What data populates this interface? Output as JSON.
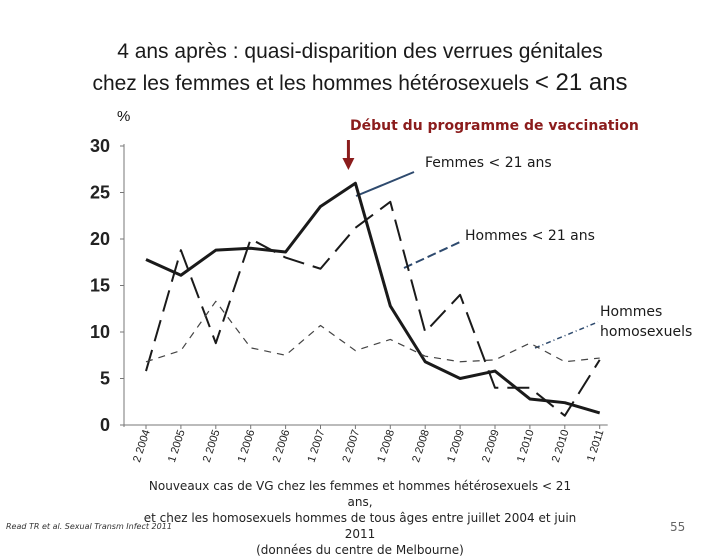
{
  "title": {
    "line1": "4 ans après : quasi-disparition des verrues génitales",
    "line2": "chez les femmes et les hommes hétérosexuels",
    "line2_end": "< 21 ans"
  },
  "percent_label": "%",
  "vaccination_label": "Début du programme de vaccination",
  "series_labels": {
    "femmes": "Femmes < 21 ans",
    "hommes": "Hommes < 21 ans",
    "homosexuels": "Hommes homosexuels"
  },
  "caption": {
    "line1": "Nouveaux cas de VG chez les femmes et hommes hétérosexuels < 21 ans,",
    "line2": "et chez les homosexuels hommes de tous âges entre juillet 2004 et juin 2011",
    "line3": "(données du centre de Melbourne)"
  },
  "reference": "Read TR et al. Sexual Transm Infect 2011",
  "page_number": "55",
  "colors": {
    "femmes": "#1a1a1a",
    "hommes": "#1a1a1a",
    "homosexuels": "#444444",
    "arrow": "#8b1c1c",
    "leader": "#2e4a6e"
  },
  "chart_data": {
    "type": "line",
    "title": "",
    "xlabel": "",
    "ylabel": "%",
    "ylim": [
      0,
      30
    ],
    "yticks": [
      0,
      5,
      10,
      15,
      20,
      25,
      30
    ],
    "categories": [
      "2 2004",
      "1 2005",
      "2 2005",
      "1 2006",
      "2 2006",
      "1 2007",
      "2 2007",
      "1 2008",
      "2 2008",
      "1 2009",
      "2 2009",
      "1 2010",
      "2 2010",
      "1 2011"
    ],
    "vaccination_start_index": 5.8,
    "series": [
      {
        "name": "Femmes < 21 ans",
        "style": "solid",
        "values": [
          17.8,
          16.1,
          18.8,
          19.0,
          18.6,
          23.5,
          26.0,
          12.8,
          6.8,
          5.0,
          5.8,
          2.8,
          2.4,
          1.3
        ]
      },
      {
        "name": "Hommes < 21 ans",
        "style": "dashed",
        "values": [
          5.8,
          18.8,
          8.8,
          20.0,
          18.0,
          16.8,
          21.2,
          24.0,
          10.0,
          14.0,
          4.0,
          4.0,
          1.0,
          7.0
        ]
      },
      {
        "name": "Hommes homosexuels",
        "style": "dashed-fine",
        "values": [
          6.8,
          8.0,
          13.3,
          8.3,
          7.5,
          10.7,
          8.0,
          9.2,
          7.4,
          6.8,
          7.0,
          8.8,
          6.8,
          7.2
        ]
      }
    ]
  }
}
